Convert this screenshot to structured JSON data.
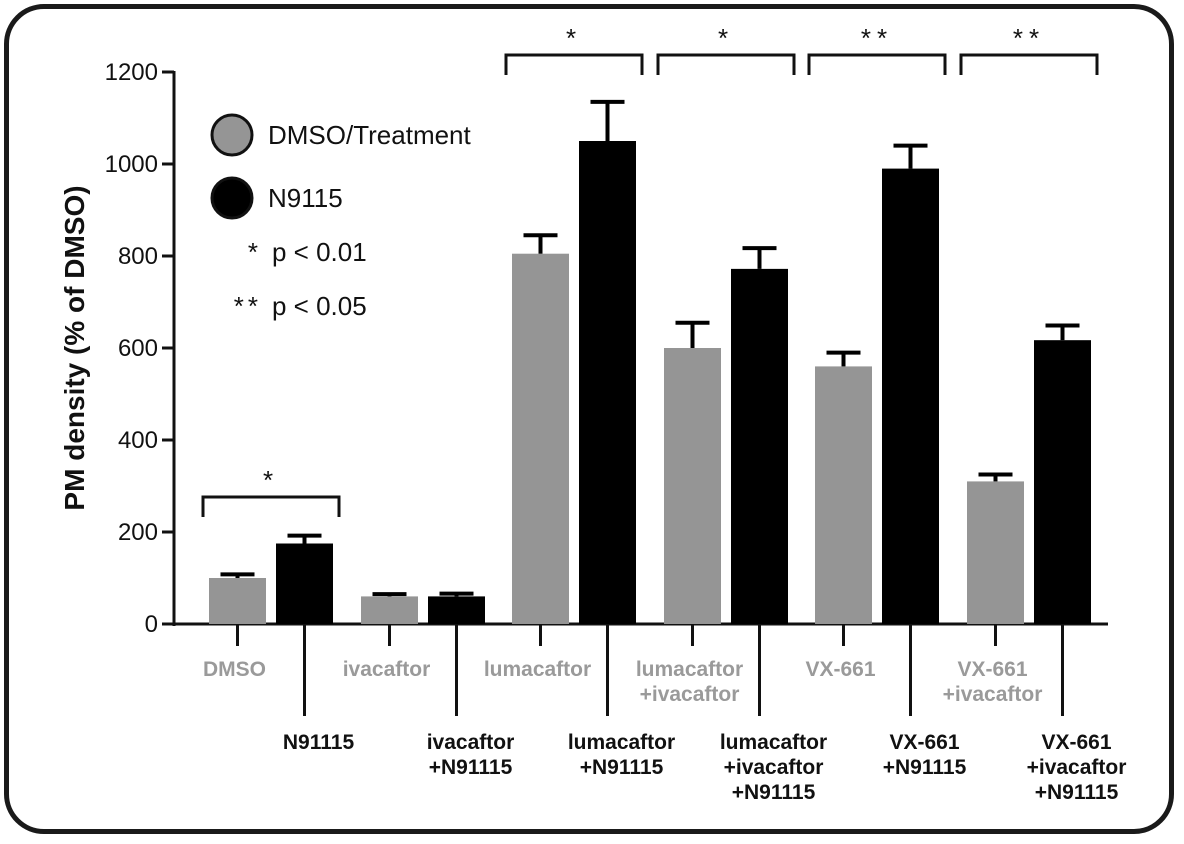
{
  "chart_data": {
    "type": "bar",
    "title": "",
    "xlabel": "",
    "ylabel": "PM density (% of DMSO)",
    "ylim": [
      0,
      1200
    ],
    "yticks": [
      0,
      200,
      400,
      600,
      800,
      1000,
      1200
    ],
    "grid": false,
    "legend_position": "top-left",
    "groups": [
      {
        "treatment": "DMSO",
        "n91115": "N91115",
        "values": [
          100,
          175
        ],
        "errors": [
          8,
          17
        ]
      },
      {
        "treatment": "ivacaftor",
        "n91115": "ivacaftor\n+N91115",
        "values": [
          60,
          60
        ],
        "errors": [
          5,
          6
        ]
      },
      {
        "treatment": "lumacaftor",
        "n91115": "lumacaftor\n+N91115",
        "values": [
          805,
          1050
        ],
        "errors": [
          40,
          85
        ]
      },
      {
        "treatment": "lumacaftor\n+ivacaftor",
        "n91115": "lumacaftor\n+ivacaftor\n+N91115",
        "values": [
          600,
          772
        ],
        "errors": [
          55,
          45
        ]
      },
      {
        "treatment": "VX-661",
        "n91115": "VX-661\n+N91115",
        "values": [
          560,
          990
        ],
        "errors": [
          30,
          50
        ]
      },
      {
        "treatment": "VX-661\n+ivacaftor",
        "n91115": "VX-661\n+ivacaftor\n+N91115",
        "values": [
          310,
          617
        ],
        "errors": [
          15,
          32
        ]
      }
    ],
    "series": [
      {
        "name": "DMSO/Treatment",
        "color": "#959595"
      },
      {
        "name": "N9115",
        "color": "#000000"
      }
    ],
    "significance": [
      {
        "group": 0,
        "label": "*"
      },
      {
        "group": 2,
        "label": "*"
      },
      {
        "group": 3,
        "label": "*"
      },
      {
        "group": 4,
        "label": "**"
      },
      {
        "group": 5,
        "label": "**"
      }
    ],
    "legend": {
      "items": [
        {
          "label": "DMSO/Treatment",
          "color": "#959595"
        },
        {
          "label": "N9115",
          "color": "#000000"
        }
      ],
      "notes": [
        {
          "symbol": "*",
          "text": "p < 0.01"
        },
        {
          "symbol": "**",
          "text": "p < 0.05"
        }
      ]
    }
  }
}
